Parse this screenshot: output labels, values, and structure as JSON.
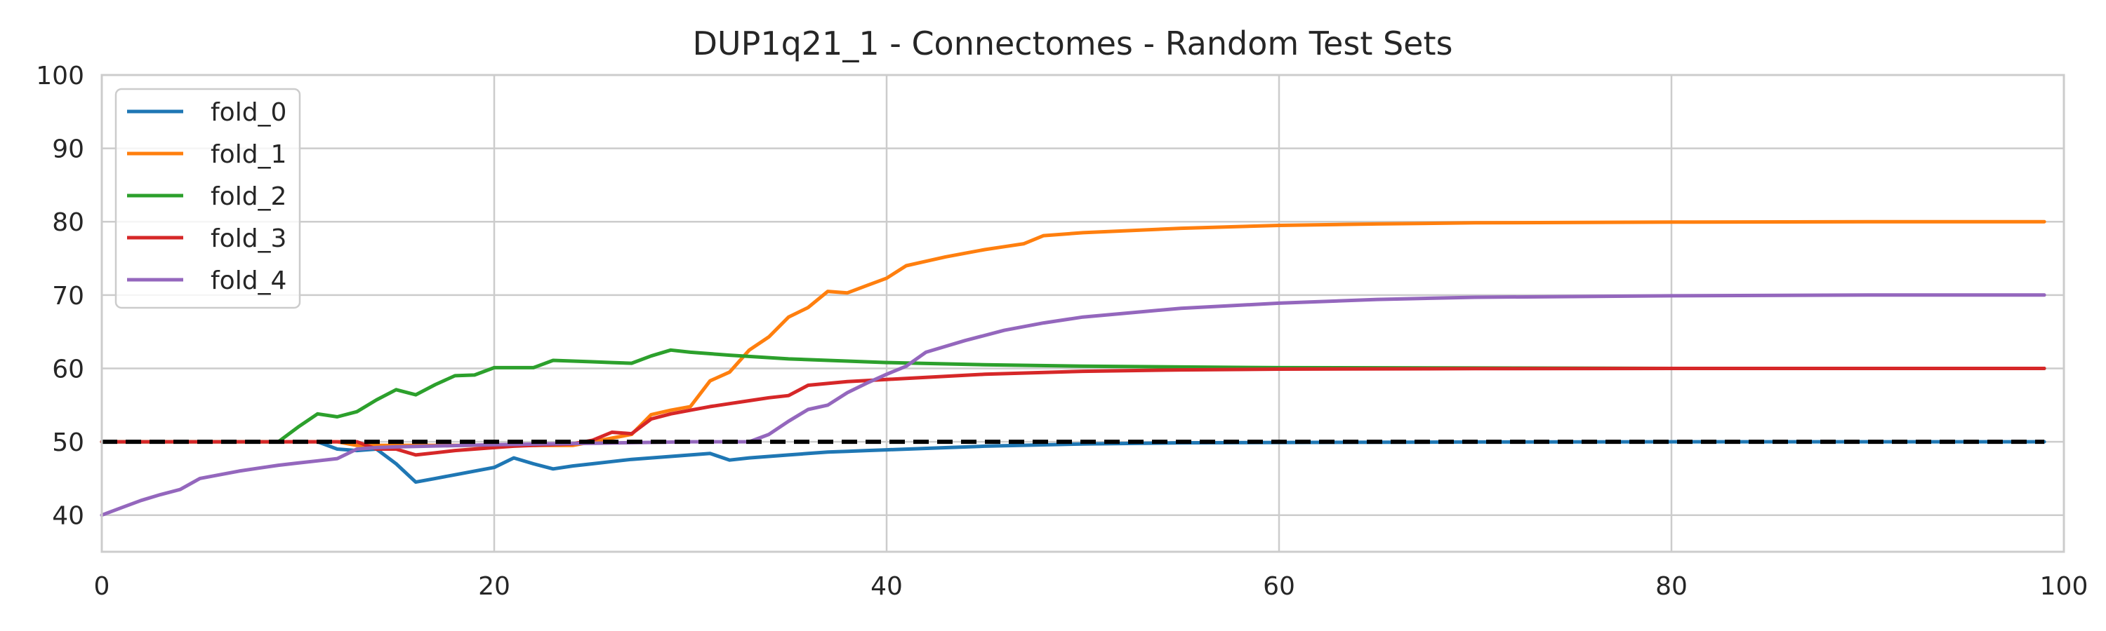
{
  "chart_data": {
    "type": "line",
    "title": "DUP1q21_1 - Connectomes - Random Test Sets",
    "xlabel": "",
    "ylabel": "",
    "xlim": [
      0,
      100
    ],
    "ylim": [
      35,
      100
    ],
    "xticks": [
      0,
      20,
      40,
      60,
      80,
      100
    ],
    "yticks": [
      40,
      50,
      60,
      70,
      80,
      90,
      100
    ],
    "grid": true,
    "legend_position": "upper-left",
    "series": [
      {
        "name": "fold_0",
        "color": "#1f77b4",
        "x": [
          0,
          10,
          11,
          12,
          13,
          14,
          15,
          16,
          17,
          18,
          19,
          20,
          21,
          22,
          23,
          24,
          25,
          26,
          27,
          28,
          29,
          30,
          31,
          32,
          33,
          34,
          35,
          36,
          37,
          38,
          39,
          40,
          45,
          50,
          55,
          60,
          70,
          80,
          90,
          99
        ],
        "y": [
          50,
          50,
          50,
          49,
          48.8,
          49,
          47,
          44.5,
          45,
          45.5,
          46,
          46.5,
          47.8,
          47,
          46.3,
          46.7,
          47,
          47.3,
          47.6,
          47.8,
          48,
          48.2,
          48.4,
          47.5,
          47.8,
          48,
          48.2,
          48.4,
          48.6,
          48.7,
          48.8,
          48.9,
          49.4,
          49.7,
          49.85,
          49.9,
          49.97,
          50,
          50,
          50
        ]
      },
      {
        "name": "fold_1",
        "color": "#ff7f0e",
        "x": [
          0,
          12,
          13,
          24,
          25,
          26,
          27,
          28,
          29,
          30,
          31,
          32,
          33,
          34,
          35,
          36,
          37,
          38,
          39,
          40,
          41,
          42,
          43,
          44,
          45,
          46,
          47,
          48,
          50,
          55,
          60,
          65,
          70,
          80,
          90,
          99
        ],
        "y": [
          50,
          50,
          49.5,
          49.5,
          50,
          50.5,
          51,
          53.7,
          54.3,
          54.8,
          58.3,
          59.5,
          62.5,
          64.3,
          67,
          68.3,
          70.5,
          70.3,
          71.3,
          72.3,
          74,
          74.6,
          75.2,
          75.7,
          76.2,
          76.6,
          77,
          78.1,
          78.5,
          79.1,
          79.5,
          79.7,
          79.85,
          79.95,
          80,
          80
        ]
      },
      {
        "name": "fold_2",
        "color": "#2ca02c",
        "x": [
          0,
          9,
          10,
          11,
          12,
          13,
          14,
          15,
          16,
          17,
          18,
          19,
          20,
          21,
          22,
          23,
          24,
          25,
          26,
          27,
          28,
          29,
          30,
          32,
          35,
          40,
          45,
          50,
          55,
          60,
          70,
          80,
          90,
          99
        ],
        "y": [
          50,
          50,
          52,
          53.8,
          53.4,
          54.1,
          55.7,
          57.1,
          56.4,
          57.8,
          59,
          59.1,
          60.1,
          60.1,
          60.1,
          61.1,
          61,
          60.9,
          60.8,
          60.7,
          61.7,
          62.5,
          62.2,
          61.8,
          61.3,
          60.8,
          60.5,
          60.3,
          60.2,
          60.1,
          60.05,
          60,
          60,
          60
        ]
      },
      {
        "name": "fold_3",
        "color": "#d62728",
        "x": [
          0,
          13,
          14,
          15,
          16,
          17,
          18,
          19,
          20,
          21,
          22,
          23,
          24,
          25,
          26,
          27,
          28,
          29,
          30,
          31,
          32,
          33,
          34,
          35,
          36,
          38,
          40,
          45,
          50,
          55,
          60,
          70,
          80,
          90,
          99
        ],
        "y": [
          50,
          50,
          49,
          49,
          48.2,
          48.5,
          48.8,
          49,
          49.2,
          49.4,
          49.5,
          49.6,
          49.7,
          50.2,
          51.3,
          51.1,
          53.1,
          53.8,
          54.3,
          54.8,
          55.2,
          55.6,
          56,
          56.3,
          57.7,
          58.2,
          58.5,
          59.2,
          59.6,
          59.8,
          59.9,
          59.97,
          60,
          60,
          60
        ]
      },
      {
        "name": "fold_4",
        "color": "#9467bd",
        "x": [
          0,
          1,
          2,
          3,
          4,
          5,
          6,
          7,
          8,
          9,
          10,
          11,
          12,
          13,
          14,
          15,
          20,
          25,
          30,
          33,
          34,
          35,
          36,
          37,
          38,
          39,
          40,
          41,
          42,
          44,
          46,
          48,
          50,
          55,
          60,
          65,
          70,
          80,
          90,
          99
        ],
        "y": [
          40,
          41,
          42,
          42.8,
          43.5,
          45,
          45.5,
          46,
          46.4,
          46.8,
          47.1,
          47.4,
          47.7,
          49,
          49.2,
          49.3,
          49.6,
          49.8,
          50,
          50,
          51,
          52.8,
          54.4,
          55,
          56.7,
          58,
          59.2,
          60.3,
          62.2,
          63.8,
          65.2,
          66.2,
          67,
          68.2,
          68.9,
          69.4,
          69.7,
          69.9,
          70,
          70
        ]
      }
    ],
    "reference_lines": [
      {
        "y": 50,
        "color": "#000000",
        "style": "dashed"
      }
    ]
  }
}
